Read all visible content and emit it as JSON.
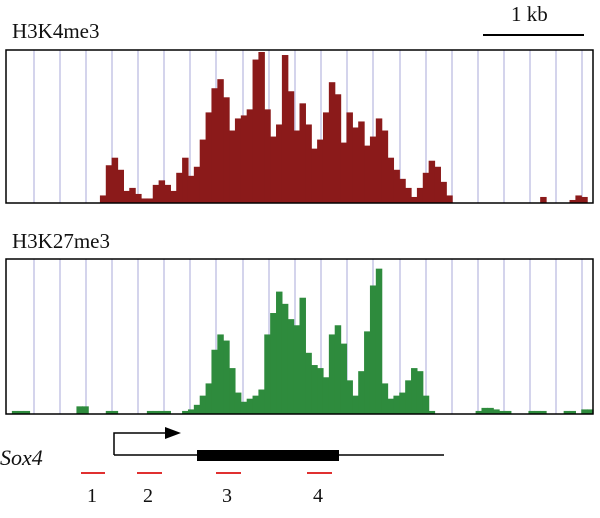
{
  "scale": {
    "label": "1 kb"
  },
  "gene": {
    "name": "Sox4",
    "fragments": [
      "1",
      "2",
      "3",
      "4"
    ]
  },
  "colors": {
    "h3k4me3": "#8b1a1a",
    "h3k27me3": "#2e8b3d",
    "grid": "#c5c5e6",
    "fragment": "#e03030",
    "axis": "#000000"
  },
  "chart_data": [
    {
      "type": "area",
      "title": "H3K4me3",
      "xlabel": "",
      "ylabel": "",
      "grid": true,
      "x": [
        1,
        2,
        3,
        4,
        5,
        6,
        7,
        8,
        9,
        10,
        11,
        12,
        13,
        14,
        15,
        16,
        17,
        18,
        19,
        20,
        21,
        22,
        23,
        24,
        25,
        26,
        27,
        28,
        29,
        30,
        31,
        32,
        33,
        34,
        35,
        36,
        37,
        38,
        39,
        40,
        41,
        42,
        43,
        44,
        45,
        46,
        47,
        48,
        49,
        50,
        51,
        52,
        53,
        54,
        55,
        56,
        57,
        58,
        59,
        60,
        61,
        62,
        63,
        64,
        65,
        66,
        67,
        68,
        69,
        70,
        71,
        72,
        73,
        74,
        75,
        76,
        77,
        78,
        79,
        80,
        81,
        82,
        83,
        84,
        85,
        86,
        87,
        88,
        89,
        90,
        91,
        92,
        93,
        94,
        95,
        96,
        97,
        98,
        99,
        100
      ],
      "values": [
        0,
        0,
        0,
        0,
        0,
        0,
        0,
        0,
        0,
        0,
        0,
        0,
        0,
        0,
        0,
        0,
        5,
        25,
        30,
        22,
        8,
        10,
        6,
        3,
        3,
        12,
        15,
        12,
        8,
        20,
        30,
        18,
        24,
        42,
        60,
        76,
        82,
        70,
        48,
        56,
        58,
        62,
        95,
        100,
        62,
        44,
        52,
        98,
        74,
        48,
        66,
        52,
        36,
        42,
        60,
        80,
        72,
        40,
        60,
        50,
        54,
        38,
        44,
        56,
        48,
        30,
        22,
        16,
        10,
        4,
        10,
        20,
        28,
        24,
        14,
        5,
        0,
        0,
        0,
        0,
        0,
        0,
        0,
        0,
        0,
        0,
        0,
        0,
        0,
        0,
        0,
        4,
        0,
        0,
        0,
        0,
        2,
        5,
        4,
        0
      ]
    },
    {
      "type": "area",
      "title": "H3K27me3",
      "xlabel": "",
      "ylabel": "",
      "grid": true,
      "x": [
        1,
        2,
        3,
        4,
        5,
        6,
        7,
        8,
        9,
        10,
        11,
        12,
        13,
        14,
        15,
        16,
        17,
        18,
        19,
        20,
        21,
        22,
        23,
        24,
        25,
        26,
        27,
        28,
        29,
        30,
        31,
        32,
        33,
        34,
        35,
        36,
        37,
        38,
        39,
        40,
        41,
        42,
        43,
        44,
        45,
        46,
        47,
        48,
        49,
        50,
        51,
        52,
        53,
        54,
        55,
        56,
        57,
        58,
        59,
        60,
        61,
        62,
        63,
        64,
        65,
        66,
        67,
        68,
        69,
        70,
        71,
        72,
        73,
        74,
        75,
        76,
        77,
        78,
        79,
        80,
        81,
        82,
        83,
        84,
        85,
        86,
        87,
        88,
        89,
        90,
        91,
        92,
        93,
        94,
        95,
        96,
        97,
        98,
        99,
        100
      ],
      "values": [
        0,
        2,
        2,
        2,
        0,
        0,
        0,
        0,
        0,
        0,
        0,
        0,
        5,
        5,
        0,
        0,
        0,
        2,
        2,
        0,
        0,
        0,
        0,
        0,
        2,
        2,
        2,
        2,
        0,
        0,
        2,
        3,
        6,
        12,
        20,
        42,
        52,
        48,
        30,
        14,
        8,
        10,
        12,
        16,
        52,
        66,
        80,
        72,
        62,
        58,
        76,
        40,
        32,
        30,
        24,
        52,
        58,
        46,
        22,
        12,
        28,
        54,
        84,
        95,
        20,
        10,
        12,
        14,
        22,
        30,
        28,
        12,
        2,
        0,
        0,
        0,
        0,
        0,
        0,
        0,
        2,
        4,
        4,
        3,
        2,
        2,
        0,
        0,
        0,
        2,
        2,
        2,
        0,
        0,
        0,
        2,
        2,
        0,
        3,
        3
      ]
    }
  ]
}
